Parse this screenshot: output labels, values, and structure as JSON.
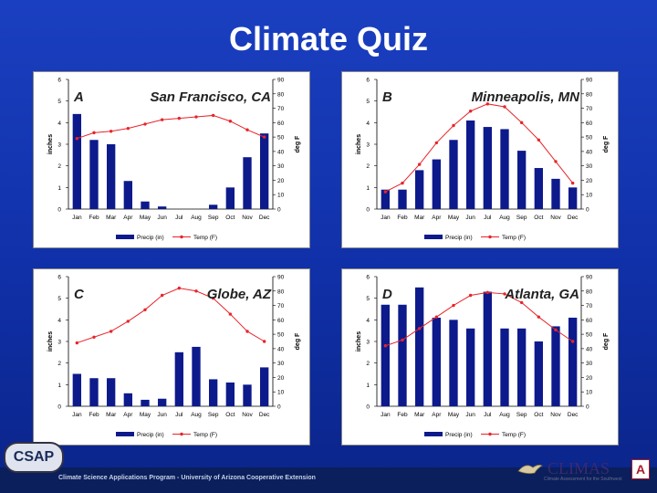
{
  "slide": {
    "title": "Climate Quiz",
    "footer_text": "Climate Science Applications Program - University of Arizona Cooperative Extension",
    "csap_logo": "CSAP",
    "climas_logo": "CLIMAS",
    "climas_subtitle": "Climate Assessment for the Southwest",
    "arizona_logo": "A"
  },
  "chart_data": [
    {
      "type": "bar+line",
      "letter": "A",
      "city": "San Francisco, CA",
      "categories": [
        "Jan",
        "Feb",
        "Mar",
        "Apr",
        "May",
        "Jun",
        "Jul",
        "Aug",
        "Sep",
        "Oct",
        "Nov",
        "Dec"
      ],
      "series": [
        {
          "name": "Precip (in)",
          "type": "bar",
          "axis": "left",
          "values": [
            4.4,
            3.2,
            3.0,
            1.3,
            0.35,
            0.12,
            0.0,
            0.0,
            0.2,
            1.0,
            2.4,
            3.5
          ]
        },
        {
          "name": "Temp (F)",
          "type": "line",
          "axis": "right",
          "values": [
            49,
            53,
            54,
            56,
            59,
            62,
            63,
            64,
            65,
            61,
            55,
            50
          ]
        }
      ],
      "ylabel_left": "inches",
      "ylabel_right": "deg F",
      "ylim_left": [
        0,
        6
      ],
      "yticks_left": [
        0,
        1,
        2,
        3,
        4,
        5,
        6
      ],
      "ylim_right": [
        0,
        90
      ],
      "yticks_right": [
        0,
        10,
        20,
        30,
        40,
        50,
        60,
        70,
        80,
        90
      ],
      "legend": "bottom"
    },
    {
      "type": "bar+line",
      "letter": "B",
      "city": "Minneapolis, MN",
      "categories": [
        "Jan",
        "Feb",
        "Mar",
        "Apr",
        "May",
        "Jun",
        "Jul",
        "Aug",
        "Sep",
        "Oct",
        "Nov",
        "Dec"
      ],
      "series": [
        {
          "name": "Precip (in)",
          "type": "bar",
          "axis": "left",
          "values": [
            0.9,
            0.9,
            1.8,
            2.3,
            3.2,
            4.1,
            3.8,
            3.7,
            2.7,
            1.9,
            1.4,
            1.0
          ]
        },
        {
          "name": "Temp (F)",
          "type": "line",
          "axis": "right",
          "values": [
            12,
            18,
            31,
            46,
            58,
            68,
            73,
            71,
            60,
            48,
            33,
            18
          ]
        }
      ],
      "ylabel_left": "inches",
      "ylabel_right": "deg F",
      "ylim_left": [
        0,
        6
      ],
      "yticks_left": [
        0,
        1,
        2,
        3,
        4,
        5,
        6
      ],
      "ylim_right": [
        0,
        90
      ],
      "yticks_right": [
        0,
        10,
        20,
        30,
        40,
        50,
        60,
        70,
        80,
        90
      ],
      "legend": "bottom"
    },
    {
      "type": "bar+line",
      "letter": "C",
      "city": "Globe, AZ",
      "categories": [
        "Jan",
        "Feb",
        "Mar",
        "Apr",
        "May",
        "Jun",
        "Jul",
        "Aug",
        "Sep",
        "Oct",
        "Nov",
        "Dec"
      ],
      "series": [
        {
          "name": "Precip (in)",
          "type": "bar",
          "axis": "left",
          "values": [
            1.5,
            1.3,
            1.3,
            0.6,
            0.3,
            0.35,
            2.5,
            2.75,
            1.25,
            1.1,
            1.0,
            1.8
          ]
        },
        {
          "name": "Temp (F)",
          "type": "line",
          "axis": "right",
          "values": [
            44,
            48,
            52,
            59,
            67,
            77,
            82,
            80,
            75,
            64,
            52,
            45
          ]
        }
      ],
      "ylabel_left": "inches",
      "ylabel_right": "deg F",
      "ylim_left": [
        0,
        6
      ],
      "yticks_left": [
        0,
        1,
        2,
        3,
        4,
        5,
        6
      ],
      "ylim_right": [
        0,
        90
      ],
      "yticks_right": [
        0,
        10,
        20,
        30,
        40,
        50,
        60,
        70,
        80,
        90
      ],
      "legend": "bottom"
    },
    {
      "type": "bar+line",
      "letter": "D",
      "city": "Atlanta, GA",
      "categories": [
        "Jan",
        "Feb",
        "Mar",
        "Apr",
        "May",
        "Jun",
        "Jul",
        "Aug",
        "Sep",
        "Oct",
        "Nov",
        "Dec"
      ],
      "series": [
        {
          "name": "Precip (in)",
          "type": "bar",
          "axis": "left",
          "values": [
            4.7,
            4.7,
            5.5,
            4.1,
            4.0,
            3.6,
            5.3,
            3.6,
            3.6,
            3.0,
            3.7,
            4.1
          ]
        },
        {
          "name": "Temp (F)",
          "type": "line",
          "axis": "right",
          "values": [
            42,
            46,
            54,
            62,
            70,
            77,
            79,
            78,
            72,
            62,
            53,
            45
          ]
        }
      ],
      "ylabel_left": "inches",
      "ylabel_right": "deg F",
      "ylim_left": [
        0,
        6
      ],
      "yticks_left": [
        0,
        1,
        2,
        3,
        4,
        5,
        6
      ],
      "ylim_right": [
        0,
        90
      ],
      "yticks_right": [
        0,
        10,
        20,
        30,
        40,
        50,
        60,
        70,
        80,
        90
      ],
      "legend": "bottom"
    }
  ],
  "colors": {
    "bar": "#0d1a8c",
    "line": "#e8242a",
    "axis": "#000000",
    "panel_bg": "#ffffff",
    "slide_bg": "#1a3fc0"
  }
}
